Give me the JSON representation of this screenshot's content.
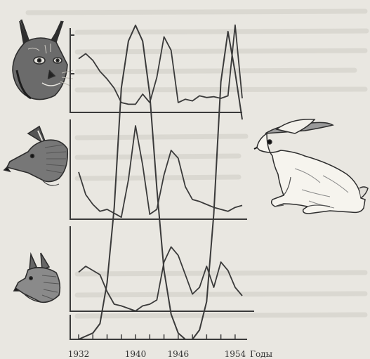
{
  "colors": {
    "paper": "#e9e7e1",
    "ink": "#3a3a3a",
    "ghost_text": "#c9c6be"
  },
  "icons": {
    "lynx": "lynx-head-icon",
    "fox": "fox-head-icon",
    "wolf": "wolf-head-icon",
    "hare": "hare-icon"
  },
  "chart_data": {
    "type": "line",
    "title": "",
    "xlabel": "Годы",
    "ylabel": "",
    "xlim": [
      1932,
      1955
    ],
    "x_ticks": [
      1932,
      1940,
      1946,
      1954
    ],
    "x_tick_labels": [
      "1932",
      "1940",
      "1946",
      "1954"
    ],
    "grid": false,
    "legend": "none (series identified by animal drawings)",
    "panels": [
      {
        "name": "lynx",
        "series": [
          {
            "style": "solid",
            "x": [
              1932,
              1933,
              1934,
              1935,
              1936,
              1937,
              1938,
              1939,
              1940,
              1941,
              1942,
              1943,
              1944,
              1945,
              1946,
              1947,
              1948,
              1949,
              1950,
              1951,
              1952,
              1953,
              1954,
              1955
            ],
            "values": [
              62,
              68,
              60,
              47,
              38,
              27,
              10,
              8,
              8,
              20,
              10,
              40,
              88,
              72,
              10,
              14,
              12,
              18,
              16,
              17,
              15,
              18,
              102,
              15
            ]
          }
        ]
      },
      {
        "name": "fox",
        "series": [
          {
            "style": "solid",
            "x": [
              1932,
              1933,
              1934,
              1935,
              1936,
              1937,
              1938,
              1939,
              1940,
              1941,
              1942,
              1943,
              1944,
              1945,
              1946,
              1947,
              1948,
              1949,
              1950,
              1951,
              1952,
              1953,
              1954,
              1955
            ],
            "values": [
              48,
              25,
              15,
              8,
              10,
              6,
              2,
              40,
              95,
              55,
              5,
              10,
              45,
              70,
              62,
              33,
              20,
              18,
              15,
              12,
              10,
              8,
              12,
              14
            ]
          }
        ]
      },
      {
        "name": "wolf",
        "series": [
          {
            "style": "solid",
            "x": [
              1932,
              1933,
              1934,
              1935,
              1936,
              1937,
              1938,
              1939,
              1940,
              1941,
              1942,
              1943,
              1944,
              1945,
              1946,
              1947,
              1948,
              1949,
              1950,
              1951,
              1952,
              1953,
              1954,
              1955
            ],
            "values": [
              48,
              55,
              50,
              45,
              25,
              10,
              8,
              5,
              2,
              8,
              10,
              15,
              60,
              78,
              68,
              45,
              22,
              30,
              55,
              30,
              60,
              50,
              30,
              20
            ]
          }
        ]
      },
      {
        "name": "hare",
        "series": [
          {
            "style": "solid",
            "x": [
              1932,
              1933,
              1934,
              1935,
              1936,
              1937,
              1938,
              1939,
              1940,
              1941,
              1942,
              1943,
              1944,
              1945,
              1946,
              1947,
              1948,
              1949,
              1950,
              1951,
              1952,
              1953,
              1954,
              1955
            ],
            "values": [
              0,
              1,
              2,
              5,
              18,
              42,
              80,
              95,
              100,
              95,
              78,
              48,
              22,
              8,
              2,
              0,
              0,
              3,
              12,
              40,
              82,
              98,
              85,
              70
            ]
          }
        ]
      }
    ]
  }
}
